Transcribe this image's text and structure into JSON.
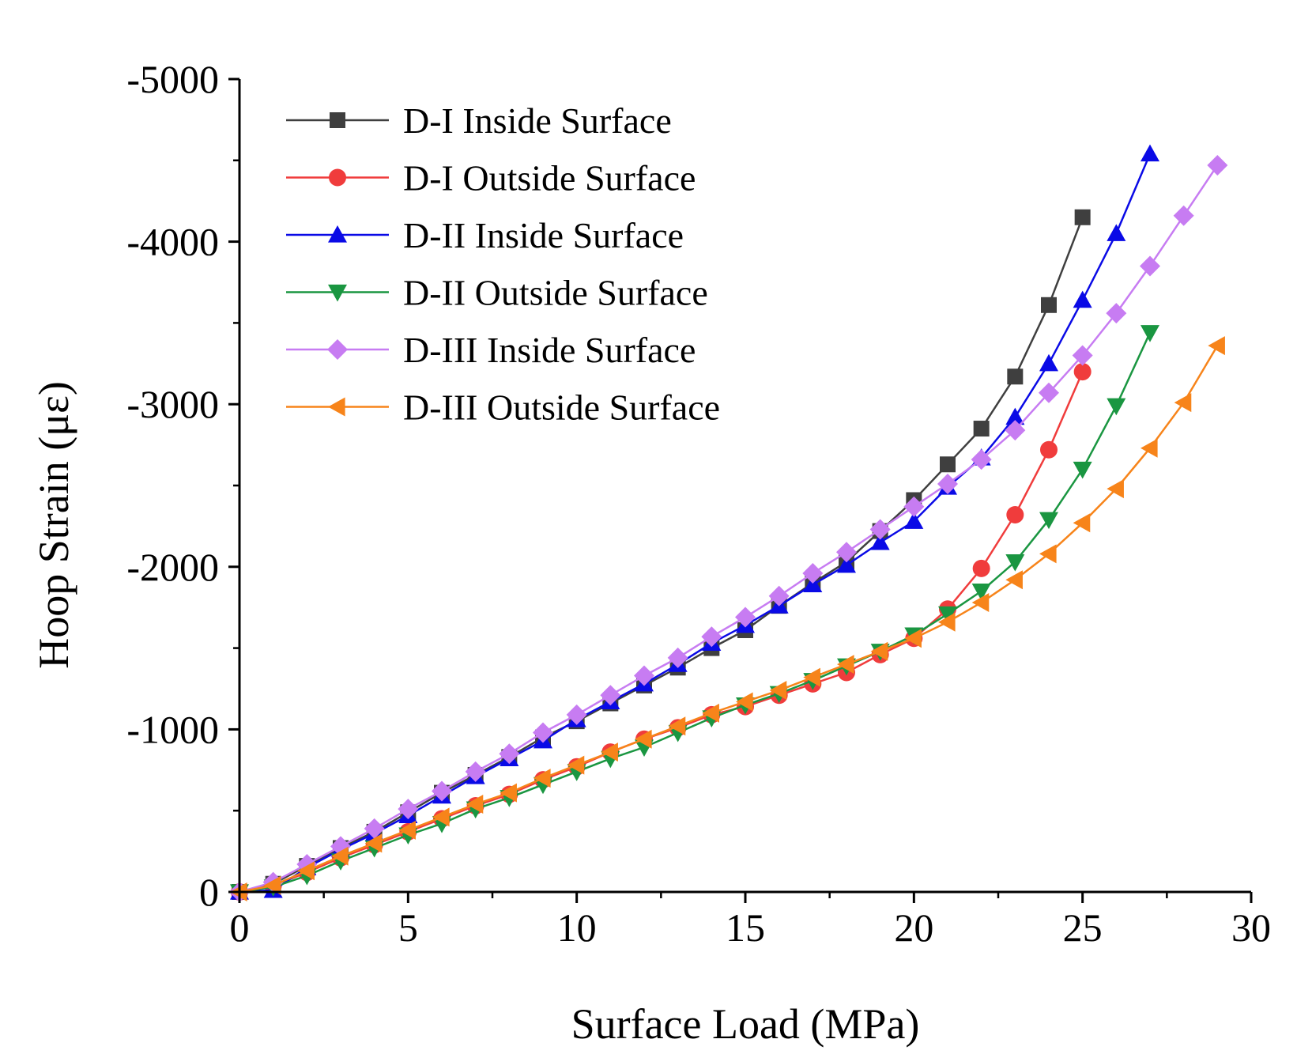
{
  "chart_data": {
    "type": "line",
    "title": "",
    "xlabel": "Surface Load (MPa)",
    "ylabel": "Hoop Strain (με)",
    "xlim": [
      0,
      30
    ],
    "ylim": [
      0,
      -5000
    ],
    "xticks": [
      0,
      5,
      10,
      15,
      20,
      25,
      30
    ],
    "xtick_labels": [
      "0",
      "5",
      "10",
      "15",
      "20",
      "25",
      "30"
    ],
    "yticks": [
      0,
      -1000,
      -2000,
      -3000,
      -4000,
      -5000
    ],
    "ytick_labels": [
      "0",
      "-1000",
      "-2000",
      "-3000",
      "-4000",
      "-5000"
    ],
    "grid": false,
    "legend_position": "top-left",
    "series": [
      {
        "name": "D-I Inside Surface",
        "color": "#3f3f3f",
        "marker": "square",
        "x": [
          0,
          1,
          2,
          3,
          4,
          5,
          6,
          7,
          8,
          9,
          10,
          11,
          12,
          13,
          14,
          15,
          16,
          17,
          18,
          19,
          20,
          21,
          22,
          23,
          24,
          25
        ],
        "y": [
          0,
          -50,
          -160,
          -270,
          -370,
          -490,
          -610,
          -720,
          -830,
          -950,
          -1050,
          -1160,
          -1270,
          -1380,
          -1500,
          -1610,
          -1760,
          -1900,
          -2030,
          -2220,
          -2410,
          -2630,
          -2850,
          -3170,
          -3610,
          -4150
        ]
      },
      {
        "name": "D-I Outside Surface",
        "color": "#f03c3c",
        "marker": "circle",
        "x": [
          0,
          1,
          2,
          3,
          4,
          5,
          6,
          7,
          8,
          9,
          10,
          11,
          12,
          13,
          14,
          15,
          16,
          17,
          18,
          19,
          20,
          21,
          22,
          23,
          24,
          25
        ],
        "y": [
          0,
          -40,
          -120,
          -210,
          -290,
          -370,
          -450,
          -530,
          -600,
          -690,
          -770,
          -860,
          -940,
          -1010,
          -1090,
          -1140,
          -1210,
          -1280,
          -1350,
          -1460,
          -1560,
          -1740,
          -1990,
          -2320,
          -2720,
          -3200
        ]
      },
      {
        "name": "D-II Inside Surface",
        "color": "#0a0ae6",
        "marker": "triangle-up",
        "x": [
          0,
          1,
          2,
          3,
          4,
          5,
          6,
          7,
          8,
          9,
          10,
          11,
          12,
          13,
          14,
          15,
          16,
          17,
          18,
          19,
          20,
          21,
          22,
          23,
          24,
          25,
          26,
          27
        ],
        "y": [
          0,
          -10,
          -150,
          -260,
          -360,
          -470,
          -590,
          -710,
          -820,
          -930,
          -1060,
          -1170,
          -1280,
          -1400,
          -1530,
          -1640,
          -1760,
          -1890,
          -2010,
          -2150,
          -2280,
          -2490,
          -2670,
          -2920,
          -3250,
          -3640,
          -4050,
          -4540
        ]
      },
      {
        "name": "D-II Outside Surface",
        "color": "#1a9641",
        "marker": "triangle-down",
        "x": [
          0,
          1,
          2,
          3,
          4,
          5,
          6,
          7,
          8,
          9,
          10,
          11,
          12,
          13,
          14,
          15,
          16,
          17,
          18,
          19,
          20,
          21,
          22,
          23,
          24,
          25,
          26,
          27
        ],
        "y": [
          0,
          -30,
          -100,
          -190,
          -270,
          -350,
          -420,
          -510,
          -580,
          -660,
          -740,
          -820,
          -890,
          -980,
          -1070,
          -1150,
          -1220,
          -1300,
          -1390,
          -1480,
          -1580,
          -1710,
          -1850,
          -2030,
          -2290,
          -2600,
          -2990,
          -3440
        ]
      },
      {
        "name": "D-III Inside Surface",
        "color": "#c77cf2",
        "marker": "diamond",
        "x": [
          0,
          1,
          2,
          3,
          4,
          5,
          6,
          7,
          8,
          9,
          10,
          11,
          12,
          13,
          14,
          15,
          16,
          17,
          18,
          19,
          20,
          21,
          22,
          23,
          24,
          25,
          26,
          27,
          28,
          29
        ],
        "y": [
          0,
          -60,
          -170,
          -280,
          -390,
          -510,
          -620,
          -740,
          -850,
          -980,
          -1090,
          -1210,
          -1330,
          -1440,
          -1570,
          -1690,
          -1820,
          -1960,
          -2090,
          -2230,
          -2370,
          -2510,
          -2660,
          -2840,
          -3070,
          -3300,
          -3560,
          -3850,
          -4160,
          -4470
        ]
      },
      {
        "name": "D-III Outside Surface",
        "color": "#f7841a",
        "marker": "triangle-left",
        "x": [
          0,
          1,
          2,
          3,
          4,
          5,
          6,
          7,
          8,
          9,
          10,
          11,
          12,
          13,
          14,
          15,
          16,
          17,
          18,
          19,
          20,
          21,
          22,
          23,
          24,
          25,
          26,
          27,
          28,
          29
        ],
        "y": [
          0,
          -40,
          -130,
          -220,
          -300,
          -380,
          -460,
          -540,
          -610,
          -700,
          -780,
          -860,
          -940,
          -1020,
          -1100,
          -1170,
          -1240,
          -1320,
          -1400,
          -1480,
          -1560,
          -1660,
          -1780,
          -1920,
          -2080,
          -2270,
          -2480,
          -2730,
          -3010,
          -3360
        ]
      }
    ]
  }
}
